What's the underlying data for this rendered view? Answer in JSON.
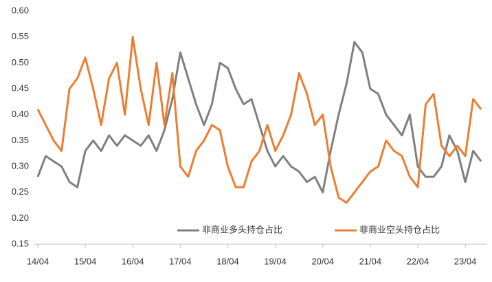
{
  "chart_data": {
    "type": "line",
    "categories": [
      "14/04",
      null,
      null,
      null,
      null,
      null,
      "15/04",
      null,
      null,
      null,
      null,
      null,
      "16/04",
      null,
      null,
      null,
      null,
      null,
      "17/04",
      null,
      null,
      null,
      null,
      null,
      "18/04",
      null,
      null,
      null,
      null,
      null,
      "19/04",
      null,
      null,
      null,
      null,
      null,
      "20/04",
      null,
      null,
      null,
      null,
      null,
      "21/04",
      null,
      null,
      null,
      null,
      null,
      "22/04",
      null,
      null,
      null,
      null,
      null,
      "23/04",
      null,
      null
    ],
    "series": [
      {
        "name": "非商业多头持仓占比",
        "color": "#7f7f7f",
        "values": [
          0.28,
          0.32,
          0.31,
          0.3,
          0.27,
          0.26,
          0.33,
          0.35,
          0.33,
          0.36,
          0.34,
          0.36,
          0.35,
          0.34,
          0.36,
          0.33,
          0.37,
          0.43,
          0.52,
          0.47,
          0.42,
          0.38,
          0.42,
          0.5,
          0.49,
          0.45,
          0.42,
          0.43,
          0.38,
          0.33,
          0.3,
          0.32,
          0.3,
          0.29,
          0.27,
          0.28,
          0.25,
          0.33,
          0.4,
          0.46,
          0.54,
          0.52,
          0.45,
          0.44,
          0.4,
          0.38,
          0.36,
          0.4,
          0.3,
          0.28,
          0.28,
          0.3,
          0.36,
          0.33,
          0.27,
          0.33,
          0.31
        ]
      },
      {
        "name": "非商业空头持仓占比",
        "color": "#ed7d31",
        "values": [
          0.41,
          0.38,
          0.35,
          0.33,
          0.45,
          0.47,
          0.51,
          0.45,
          0.38,
          0.47,
          0.5,
          0.4,
          0.55,
          0.45,
          0.38,
          0.5,
          0.38,
          0.48,
          0.3,
          0.28,
          0.33,
          0.35,
          0.38,
          0.37,
          0.3,
          0.26,
          0.26,
          0.31,
          0.33,
          0.38,
          0.33,
          0.36,
          0.4,
          0.48,
          0.44,
          0.38,
          0.4,
          0.3,
          0.24,
          0.23,
          0.25,
          0.27,
          0.29,
          0.3,
          0.35,
          0.33,
          0.32,
          0.28,
          0.26,
          0.42,
          0.44,
          0.34,
          0.32,
          0.34,
          0.32,
          0.43,
          0.41
        ]
      }
    ],
    "ylim": [
      0.15,
      0.6
    ],
    "yticks": [
      0.15,
      {
        "value": 0.2,
        "label": "0.20"
      },
      0.25,
      {
        "value": 0.3,
        "label": "0.30"
      },
      0.35,
      {
        "value": 0.4,
        "label": "0.40"
      },
      0.45,
      {
        "value": 0.5,
        "label": "0.50"
      },
      0.55,
      {
        "value": 0.6,
        "label": "0.60"
      }
    ],
    "grid": false,
    "legend": "bottom"
  }
}
